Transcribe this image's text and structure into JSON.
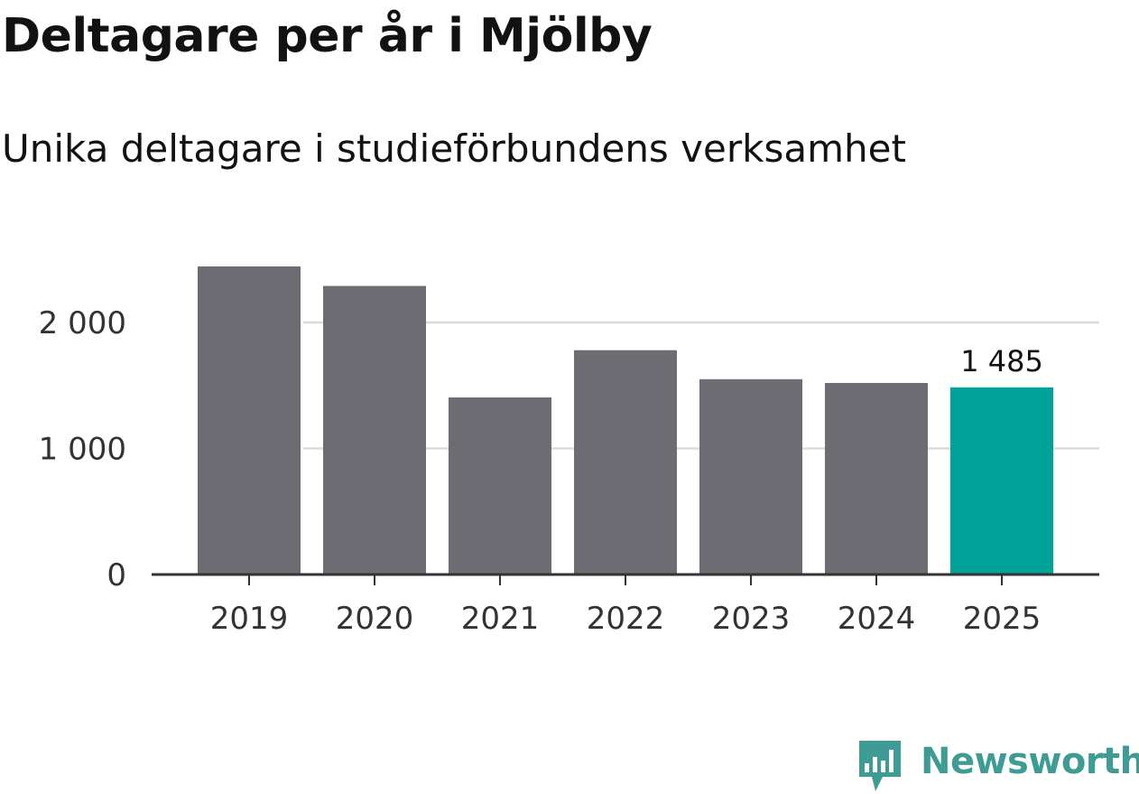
{
  "header": {
    "title": "Deltagare per år i Mjölby",
    "subtitle": "Unika deltagare i studieförbundens verksamhet"
  },
  "chart_data": {
    "type": "bar",
    "title": "Deltagare per år i Mjölby",
    "subtitle": "Unika deltagare i studieförbundens verksamhet",
    "categories": [
      "2019",
      "2020",
      "2021",
      "2022",
      "2023",
      "2024",
      "2025"
    ],
    "values": [
      2445,
      2290,
      1405,
      1780,
      1550,
      1520,
      1485
    ],
    "highlight_index": 6,
    "data_labels": [
      "",
      "",
      "",
      "",
      "",
      "",
      "1 485"
    ],
    "ylim": [
      0,
      2500
    ],
    "yticks": [
      0,
      1000,
      2000
    ],
    "ytick_labels": [
      "0",
      "1 000",
      "2 000"
    ],
    "xlabel": "",
    "ylabel": "",
    "grid": true,
    "colors": {
      "bar": "#6d6c73",
      "highlight": "#00a398",
      "grid": "#dcdcdc",
      "axis": "#333333",
      "tick_text": "#333333"
    }
  },
  "branding": {
    "name": "Newsworthy",
    "icon": "newsworthy-logo-icon",
    "color": "#3e9c95"
  }
}
